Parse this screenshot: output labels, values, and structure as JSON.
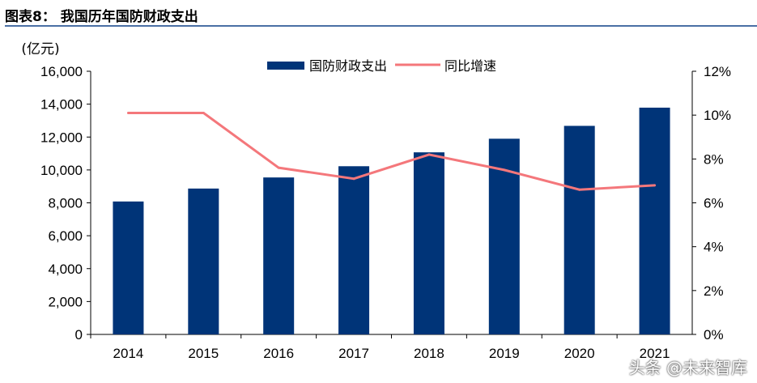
{
  "header": {
    "title": "图表8：  我国历年国防财政支出"
  },
  "watermark": "头条 @未来智库",
  "chart_data": {
    "type": "bar+line",
    "categories": [
      "2014",
      "2015",
      "2016",
      "2017",
      "2018",
      "2019",
      "2020",
      "2021"
    ],
    "left_axis": {
      "unit_label": "(亿元)",
      "ylim": [
        0,
        16000
      ],
      "ticks": [
        "0",
        "2,000",
        "4,000",
        "6,000",
        "8,000",
        "10,000",
        "12,000",
        "14,000",
        "16,000"
      ]
    },
    "right_axis": {
      "ylim": [
        0,
        12
      ],
      "ticks": [
        "0%",
        "2%",
        "4%",
        "6%",
        "8%",
        "10%",
        "12%"
      ]
    },
    "series": [
      {
        "name": "国防财政支出",
        "type": "bar",
        "axis": "left",
        "color": "#003478",
        "values": [
          8082,
          8869,
          9543,
          10226,
          11070,
          11898,
          12680,
          13787
        ]
      },
      {
        "name": "同比增速",
        "type": "line",
        "axis": "right",
        "color": "#f4777b",
        "values": [
          10.1,
          10.1,
          7.6,
          7.1,
          8.2,
          7.5,
          6.6,
          6.8
        ]
      }
    ],
    "legend": "top-center",
    "grid": false
  }
}
